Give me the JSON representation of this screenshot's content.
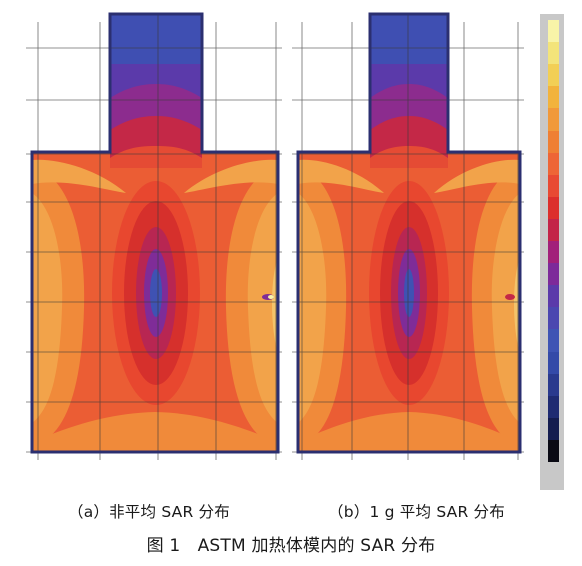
{
  "panels": [
    {
      "id": "a",
      "caption": "（a）非平均 SAR 分布"
    },
    {
      "id": "b",
      "caption": "（b）1 g 平均 SAR 分布"
    }
  ],
  "figure_caption": "图 1　ASTM 加热体模内的 SAR 分布",
  "colorbar": {
    "colors_top_to_bottom": [
      "#f8f4a8",
      "#f3e47a",
      "#f2cf55",
      "#f2b33c",
      "#f1993a",
      "#ef7f34",
      "#ee6536",
      "#e84a33",
      "#dc2f2c",
      "#c32448",
      "#a2207a",
      "#7d2a9a",
      "#5b3aaa",
      "#4b47b0",
      "#3e54b4",
      "#344aa8",
      "#2a3a8e",
      "#1f2b72",
      "#141c4f",
      "#0a0a14"
    ]
  },
  "colors": {
    "low_sar": "#3a4fb2",
    "mid_sar": "#e9452f",
    "high_sar": "#f3a64a",
    "peak_sar": "#f8ee88"
  }
}
